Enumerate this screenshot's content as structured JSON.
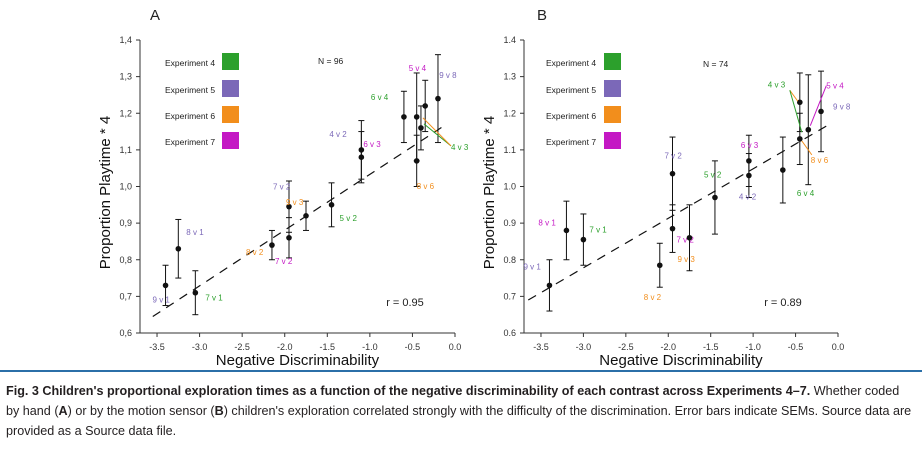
{
  "caption": {
    "label": "Fig. 3",
    "title": "Children's proportional exploration times as a function of the negative discriminability of each contrast across Experiments 4–7.",
    "text_1": "Whether coded by hand (",
    "A": "A",
    "text_2": ") or by the motion sensor (",
    "B": "B",
    "text_3": ") children's exploration correlated strongly with the difficulty of the discrimination. Error bars indicate SEMs. Source data are provided as a Source data file."
  },
  "legend_colors": {
    "Experiment 4": "#2ca02c",
    "Experiment 5": "#7b68b8",
    "Experiment 6": "#f28e1c",
    "Experiment 7": "#c418c4"
  },
  "chart_data": [
    {
      "type": "scatter",
      "panel": "A",
      "xlabel": "Negative Discriminability",
      "ylabel": "Proportion Playtime * 4",
      "xlim": [
        -3.7,
        0.0
      ],
      "ylim": [
        0.6,
        1.4
      ],
      "xticks": [
        "-3.5",
        "-3.0",
        "-2.5",
        "-2.0",
        "-1.5",
        "-1.0",
        "-0.5",
        "0.0"
      ],
      "yticks": [
        "0,6",
        "0,7",
        "0,8",
        "0,9",
        "1,0",
        "1,1",
        "1,2",
        "1,3",
        "1,4"
      ],
      "annotation_n": "N = 96",
      "annotation_r": "r = 0.95",
      "legend": [
        "Experiment 4",
        "Experiment 5",
        "Experiment 6",
        "Experiment 7"
      ],
      "fit_line": {
        "x": [
          -3.55,
          -0.1
        ],
        "y": [
          0.645,
          1.17
        ]
      },
      "points": [
        {
          "label": "9 v 1",
          "x": -3.4,
          "y": 0.73,
          "err": 0.055,
          "exp": "Experiment 5"
        },
        {
          "label": "8 v 1",
          "x": -3.25,
          "y": 0.83,
          "err": 0.08,
          "exp": "Experiment 5"
        },
        {
          "label": "7 v 1",
          "x": -3.05,
          "y": 0.71,
          "err": 0.06,
          "exp": "Experiment 4"
        },
        {
          "label": "8 v 2",
          "x": -2.15,
          "y": 0.84,
          "err": 0.04,
          "exp": "Experiment 6"
        },
        {
          "label": "7 v 2",
          "x": -1.95,
          "y": 0.86,
          "err": 0.055,
          "exp": "Experiment 7"
        },
        {
          "label": "7 v 2",
          "x": -1.95,
          "y": 0.945,
          "err": 0.07,
          "exp": "Experiment 5"
        },
        {
          "label": "9 v 3",
          "x": -1.75,
          "y": 0.92,
          "err": 0.04,
          "exp": "Experiment 6"
        },
        {
          "label": "5 v 2",
          "x": -1.45,
          "y": 0.95,
          "err": 0.06,
          "exp": "Experiment 4"
        },
        {
          "label": "4 v 2",
          "x": -1.1,
          "y": 1.08,
          "err": 0.07,
          "exp": "Experiment 5"
        },
        {
          "label": "6 v 3",
          "x": -1.1,
          "y": 1.1,
          "err": 0.08,
          "exp": "Experiment 7"
        },
        {
          "label": "6 v 4",
          "x": -0.6,
          "y": 1.19,
          "err": 0.07,
          "exp": "Experiment 4"
        },
        {
          "label": "5 v 4",
          "x": -0.45,
          "y": 1.19,
          "err": 0.12,
          "exp": "Experiment 7"
        },
        {
          "label": "8 v 6",
          "x": -0.45,
          "y": 1.07,
          "err": 0.07,
          "exp": "Experiment 6"
        },
        {
          "label": "4 v 3",
          "x": -0.4,
          "y": 1.16,
          "err": 0.06,
          "exp": "Experiment 4"
        },
        {
          "label": "9 v 8",
          "x": -0.35,
          "y": 1.22,
          "err": 0.07,
          "exp": "Experiment 5"
        },
        {
          "label": "",
          "x": -0.2,
          "y": 1.24,
          "err": 0.12,
          "exp": ""
        }
      ]
    },
    {
      "type": "scatter",
      "panel": "B",
      "xlabel": "Negative Discriminability",
      "ylabel": "Proportion Playtime * 4",
      "xlim": [
        -3.7,
        0.0
      ],
      "ylim": [
        0.6,
        1.4
      ],
      "xticks": [
        "-3.5",
        "-3.0",
        "-2.5",
        "-2.0",
        "-1.5",
        "-1.0",
        "-0.5",
        "0.0"
      ],
      "yticks": [
        "0.6",
        "0.7",
        "0.8",
        "0.9",
        "1.0",
        "1.1",
        "1.2",
        "1.3",
        "1.4"
      ],
      "annotation_n": "N = 74",
      "annotation_r": "r = 0.89",
      "legend": [
        "Experiment 4",
        "Experiment 5",
        "Experiment 6",
        "Experiment 7"
      ],
      "fit_line": {
        "x": [
          -3.65,
          -0.1
        ],
        "y": [
          0.69,
          1.17
        ]
      },
      "points": [
        {
          "label": "9 v 1",
          "x": -3.4,
          "y": 0.73,
          "err": 0.07,
          "exp": "Experiment 5"
        },
        {
          "label": "8 v 1",
          "x": -3.2,
          "y": 0.88,
          "err": 0.08,
          "exp": "Experiment 7"
        },
        {
          "label": "7 v 1",
          "x": -3.0,
          "y": 0.855,
          "err": 0.07,
          "exp": "Experiment 4"
        },
        {
          "label": "8 v 2",
          "x": -2.1,
          "y": 0.785,
          "err": 0.06,
          "exp": "Experiment 6"
        },
        {
          "label": "7 v 2",
          "x": -1.95,
          "y": 0.885,
          "err": 0.065,
          "exp": "Experiment 7"
        },
        {
          "label": "7 v 2",
          "x": -1.95,
          "y": 1.035,
          "err": 0.1,
          "exp": "Experiment 5"
        },
        {
          "label": "9 v 3",
          "x": -1.75,
          "y": 0.86,
          "err": 0.09,
          "exp": "Experiment 6"
        },
        {
          "label": "5 v 2",
          "x": -1.45,
          "y": 0.97,
          "err": 0.1,
          "exp": "Experiment 4"
        },
        {
          "label": "4 v 2",
          "x": -1.05,
          "y": 1.03,
          "err": 0.06,
          "exp": "Experiment 5"
        },
        {
          "label": "6 v 3",
          "x": -1.05,
          "y": 1.07,
          "err": 0.07,
          "exp": "Experiment 7"
        },
        {
          "label": "6 v 4",
          "x": -0.65,
          "y": 1.045,
          "err": 0.09,
          "exp": "Experiment 4"
        },
        {
          "label": "4 v 3",
          "x": -0.45,
          "y": 1.23,
          "err": 0.08,
          "exp": "Experiment 4"
        },
        {
          "label": "8 v 6",
          "x": -0.45,
          "y": 1.13,
          "err": 0.07,
          "exp": "Experiment 6"
        },
        {
          "label": "5 v 4",
          "x": -0.35,
          "y": 1.155,
          "err": 0.15,
          "exp": "Experiment 7"
        },
        {
          "label": "9 v 8",
          "x": -0.2,
          "y": 1.205,
          "err": 0.11,
          "exp": "Experiment 5"
        }
      ]
    }
  ]
}
